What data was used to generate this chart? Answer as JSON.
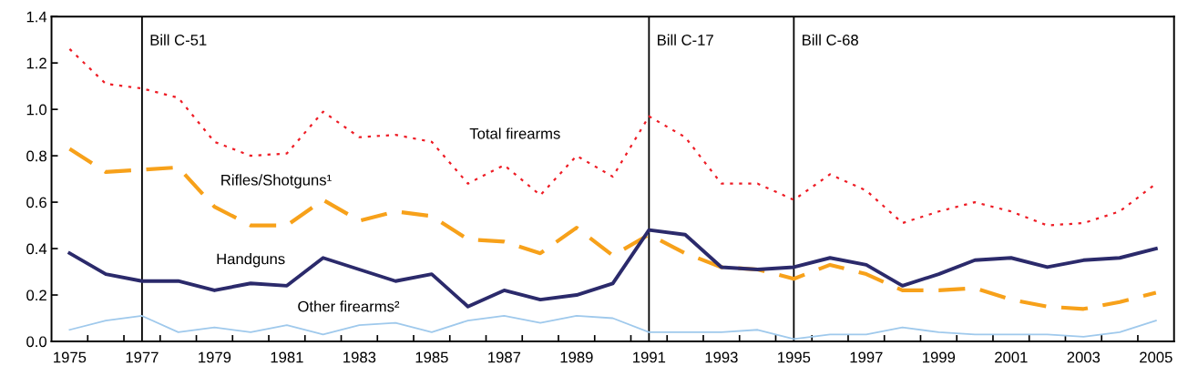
{
  "chart_data": {
    "type": "line",
    "categories": [
      "1975",
      null,
      "1977",
      null,
      "1979",
      null,
      "1981",
      null,
      "1983",
      null,
      "1985",
      null,
      "1987",
      null,
      "1989",
      null,
      "1991",
      null,
      "1993",
      null,
      "1995",
      null,
      "1997",
      null,
      "1999",
      null,
      "2001",
      null,
      "2003",
      null,
      "2005"
    ],
    "series": [
      {
        "name": "Total firearms",
        "color": "#ee1c25",
        "line_style": "dotted",
        "values": [
          1.26,
          1.11,
          1.09,
          1.05,
          0.86,
          0.8,
          0.81,
          0.99,
          0.88,
          0.89,
          0.86,
          0.68,
          0.76,
          0.63,
          0.8,
          0.71,
          0.97,
          0.88,
          0.68,
          0.68,
          0.61,
          0.72,
          0.65,
          0.51,
          0.56,
          0.6,
          0.56,
          0.5,
          0.51,
          0.56,
          0.68
        ]
      },
      {
        "name": "Rifles/Shotguns¹",
        "color": "#f7a11a",
        "line_style": "dashed",
        "values": [
          0.83,
          0.73,
          0.74,
          0.75,
          0.58,
          0.5,
          0.5,
          0.61,
          0.52,
          0.56,
          0.54,
          0.44,
          0.43,
          0.38,
          0.49,
          0.37,
          0.46,
          0.38,
          0.32,
          0.31,
          0.27,
          0.33,
          0.29,
          0.22,
          0.22,
          0.23,
          0.18,
          0.15,
          0.14,
          0.17,
          0.21
        ]
      },
      {
        "name": "Handguns",
        "color": "#2b2a6b",
        "line_style": "solid",
        "values": [
          0.38,
          0.29,
          0.26,
          0.26,
          0.22,
          0.25,
          0.24,
          0.36,
          0.31,
          0.26,
          0.29,
          0.15,
          0.22,
          0.18,
          0.2,
          0.25,
          0.48,
          0.46,
          0.32,
          0.31,
          0.32,
          0.36,
          0.33,
          0.24,
          0.29,
          0.35,
          0.36,
          0.32,
          0.35,
          0.36,
          0.4
        ]
      },
      {
        "name": "Other firearms²",
        "color": "#9fc9ec",
        "line_style": "solid",
        "values": [
          0.05,
          0.09,
          0.11,
          0.04,
          0.06,
          0.04,
          0.07,
          0.03,
          0.07,
          0.08,
          0.04,
          0.09,
          0.11,
          0.08,
          0.11,
          0.1,
          0.04,
          0.04,
          0.04,
          0.05,
          0.01,
          0.03,
          0.03,
          0.06,
          0.04,
          0.03,
          0.03,
          0.03,
          0.02,
          0.04,
          0.09
        ]
      }
    ],
    "ylim": [
      0,
      1.4
    ],
    "yticks": [
      {
        "value": 0,
        "label": "0.0"
      },
      0.2,
      0.4,
      0.6,
      0.8,
      {
        "value": 1,
        "label": "1.0"
      },
      1.2,
      1.4
    ],
    "ref_lines": [
      {
        "axis": "x",
        "value": "1977",
        "label": "Bill C-51",
        "color": "#000000"
      },
      {
        "axis": "x",
        "value": "1991",
        "label": "Bill C-17",
        "color": "#000000"
      },
      {
        "axis": "x",
        "value": "1995",
        "label": "Bill C-68",
        "color": "#000000"
      }
    ],
    "grid": false,
    "legend": false,
    "marker": "none"
  }
}
